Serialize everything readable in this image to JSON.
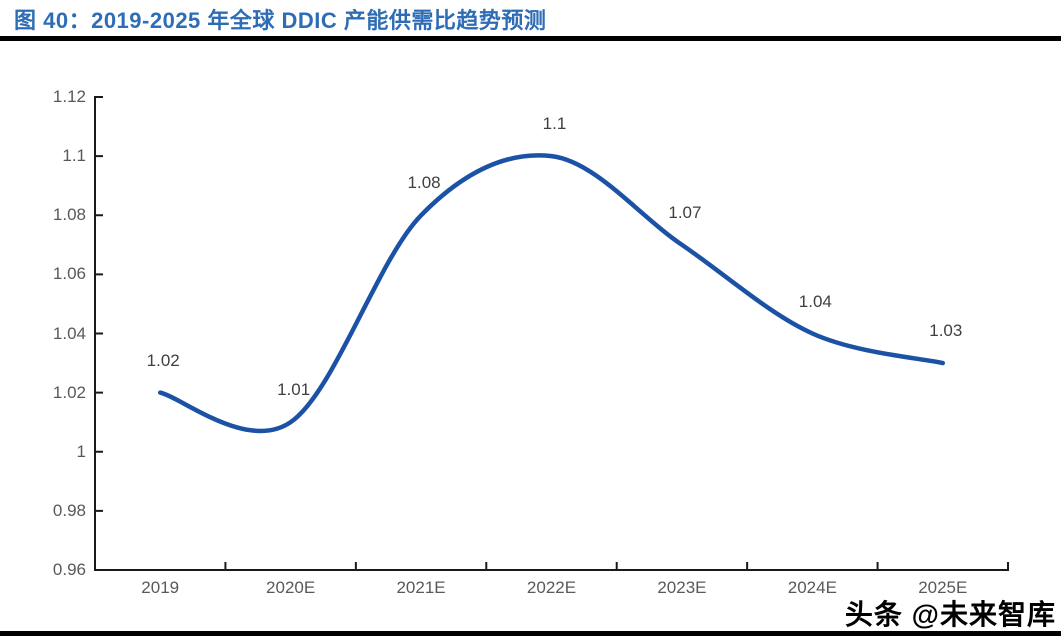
{
  "page": {
    "title": "图 40：2019-2025 年全球 DDIC 产能供需比趋势预测",
    "watermark": "头条 @未来智库"
  },
  "chart_data": {
    "type": "line",
    "title": "2019-2025 年全球 DDIC 产能供需比趋势预测",
    "categories": [
      "2019",
      "2020E",
      "2021E",
      "2022E",
      "2023E",
      "2024E",
      "2025E"
    ],
    "values": [
      1.02,
      1.01,
      1.08,
      1.1,
      1.07,
      1.04,
      1.03
    ],
    "data_labels": [
      "1.02",
      "1.01",
      "1.08",
      "1.1",
      "1.07",
      "1.04",
      "1.03"
    ],
    "xlabel": "",
    "ylabel": "",
    "ylim": [
      0.96,
      1.12
    ],
    "y_ticks": [
      0.96,
      0.98,
      1,
      1.02,
      1.04,
      1.06,
      1.08,
      1.1,
      1.12
    ],
    "y_tick_labels": [
      "0.96",
      "0.98",
      "1",
      "1.02",
      "1.04",
      "1.06",
      "1.08",
      "1.1",
      "1.12"
    ],
    "grid": false,
    "legend": "none",
    "smooth": true,
    "line_color": "#1C52A5"
  },
  "colors": {
    "title_blue": "#2E6DB5",
    "rule_black": "#000000",
    "axis": "#1A1A1A",
    "tick_label": "#595959",
    "data_label": "#3F3F3F",
    "background": "#FFFFFF"
  }
}
